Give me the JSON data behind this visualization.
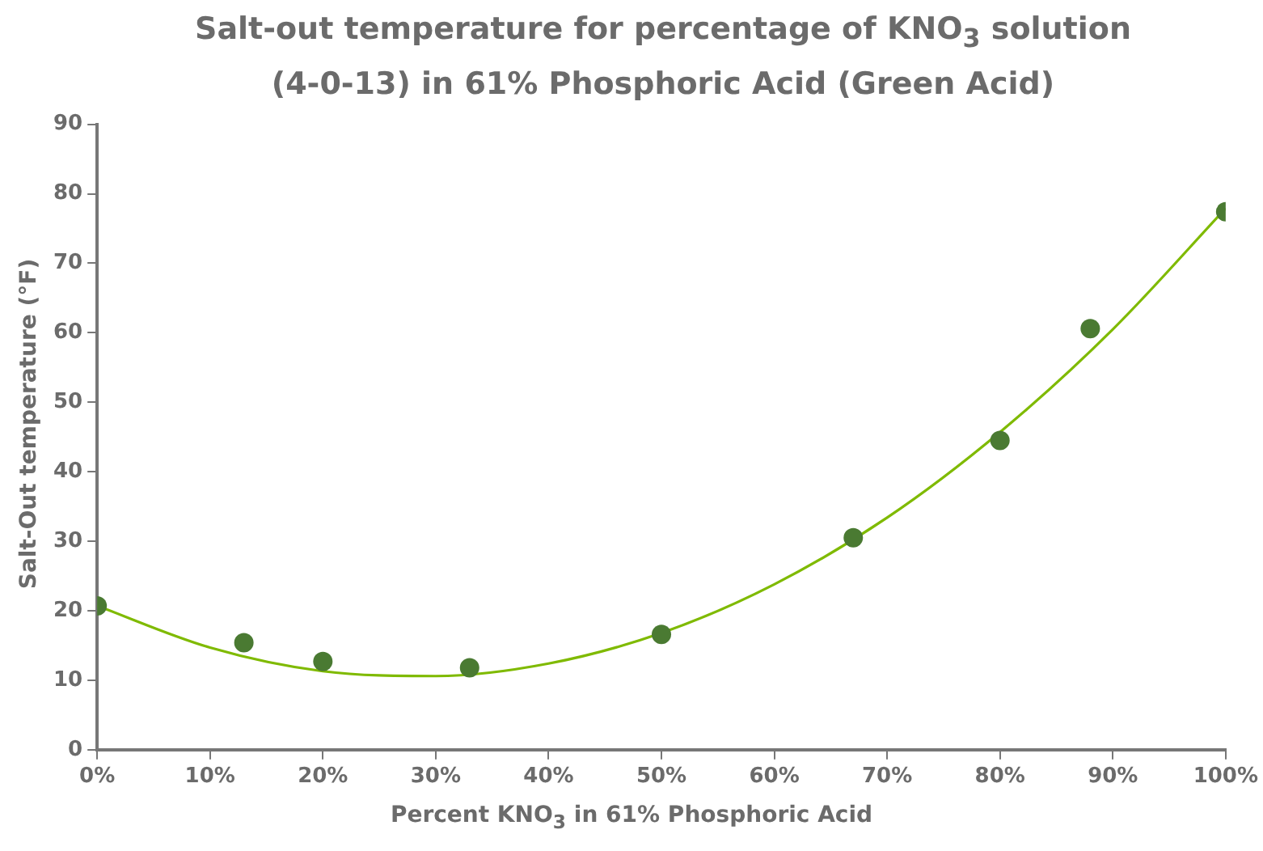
{
  "chart_data": {
    "type": "scatter",
    "title": "Salt-out temperature for percentage of KNO$_{3}$ solution (4-0-13) in 61% Phosphoric Acid (Green Acid)",
    "xlabel": "Percent KNO$_{3}$ in 61% Phosphoric Acid",
    "ylabel": "Salt-Out temperature (°F)",
    "x": [
      0,
      13,
      20,
      33,
      50,
      67,
      80,
      88,
      100
    ],
    "series": [
      {
        "color": "#4a7a32",
        "marker": "circle",
        "values": [
          20.7,
          15.4,
          12.7,
          11.8,
          16.6,
          30.5,
          44.5,
          60.6,
          77.4
        ]
      },
      {
        "type": "line",
        "color": "#7fba00",
        "marker": "none",
        "x": [
          0,
          10,
          20,
          30,
          40,
          50,
          60,
          70,
          80,
          90,
          100
        ],
        "values": [
          20.7,
          14.7,
          11.3,
          10.6,
          12.4,
          16.8,
          23.8,
          33.4,
          45.7,
          60.5,
          77.9
        ]
      }
    ],
    "xlim": [
      0,
      100
    ],
    "xticks": [
      {
        "value": 0,
        "label": "0%"
      },
      {
        "value": 10,
        "label": "10%"
      },
      {
        "value": 20,
        "label": "20%"
      },
      {
        "value": 30,
        "label": "30%"
      },
      {
        "value": 40,
        "label": "40%"
      },
      {
        "value": 50,
        "label": "50%"
      },
      {
        "value": 60,
        "label": "60%"
      },
      {
        "value": 70,
        "label": "70%"
      },
      {
        "value": 80,
        "label": "80%"
      },
      {
        "value": 90,
        "label": "90%"
      },
      {
        "value": 100,
        "label": "100%"
      }
    ],
    "ylim": [
      0,
      90
    ],
    "yticks": [
      0,
      10,
      20,
      30,
      40,
      50,
      60,
      70,
      80,
      90
    ],
    "grid": false
  }
}
